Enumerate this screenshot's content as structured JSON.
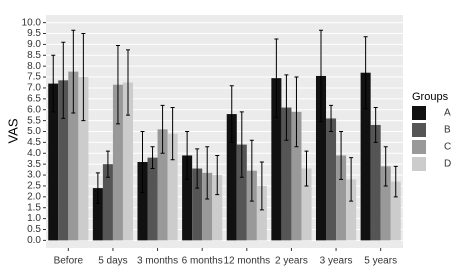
{
  "chart_data": {
    "type": "bar",
    "ylabel": "VAS",
    "legend_title": "Groups",
    "legend": "right",
    "grid": true,
    "categories": [
      "Before",
      "5 days",
      "3 months",
      "6 months",
      "12 months",
      "2 years",
      "3 years",
      "5 years"
    ],
    "series": [
      {
        "name": "A",
        "color": "#111111",
        "values": [
          7.2,
          2.4,
          3.6,
          3.9,
          5.8,
          7.45,
          7.55,
          7.7
        ],
        "errors": [
          1.3,
          0.7,
          1.4,
          1.1,
          1.3,
          1.8,
          2.1,
          1.65
        ]
      },
      {
        "name": "B",
        "color": "#555555",
        "values": [
          7.35,
          3.5,
          3.8,
          3.3,
          4.4,
          6.1,
          5.6,
          5.3
        ],
        "errors": [
          1.75,
          0.6,
          0.5,
          0.9,
          1.5,
          1.5,
          0.6,
          0.8
        ]
      },
      {
        "name": "C",
        "color": "#999999",
        "values": [
          7.75,
          7.15,
          5.1,
          3.1,
          3.2,
          5.9,
          3.9,
          3.4
        ],
        "errors": [
          1.9,
          1.8,
          1.1,
          1.2,
          1.4,
          1.6,
          1.1,
          0.9
        ]
      },
      {
        "name": "D",
        "color": "#cccccc",
        "values": [
          7.5,
          7.25,
          4.9,
          3.0,
          2.5,
          3.3,
          2.8,
          2.7
        ],
        "errors": [
          2.0,
          1.5,
          1.2,
          0.9,
          1.1,
          0.8,
          1.0,
          0.7
        ]
      }
    ],
    "ylim": [
      -0.35,
      10.35
    ],
    "yticks": [
      {
        "value": 0,
        "label": "0.0"
      },
      0.5,
      {
        "value": 1,
        "label": "1.0"
      },
      1.5,
      {
        "value": 2,
        "label": "2.0"
      },
      2.5,
      {
        "value": 3,
        "label": "3.0"
      },
      3.5,
      {
        "value": 4,
        "label": "4.0"
      },
      4.5,
      {
        "value": 5,
        "label": "5.0"
      },
      5.5,
      {
        "value": 6,
        "label": "6.0"
      },
      6.5,
      {
        "value": 7,
        "label": "7.0"
      },
      7.5,
      {
        "value": 8,
        "label": "8.0"
      },
      8.5,
      {
        "value": 9,
        "label": "9.0"
      },
      9.5,
      {
        "value": 10,
        "label": "10.0"
      }
    ]
  }
}
